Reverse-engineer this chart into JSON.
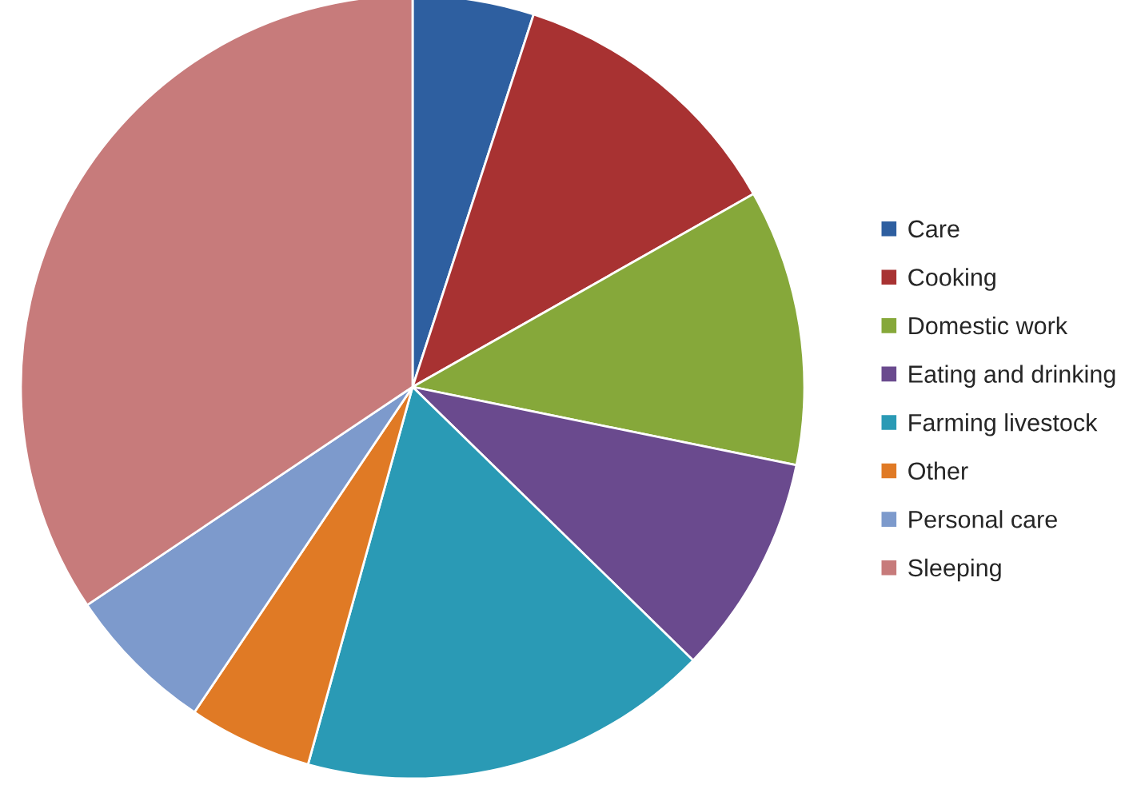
{
  "chart_data": {
    "type": "pie",
    "categories": [
      "Care",
      "Cooking",
      "Domestic work",
      "Eating and drinking",
      "Farming livestock",
      "Other",
      "Personal care",
      "Sleeping"
    ],
    "values": [
      5.0,
      11.8,
      11.4,
      9.1,
      17.0,
      5.1,
      6.2,
      34.4
    ],
    "colors": [
      "#2e5fa0",
      "#a83232",
      "#86a83a",
      "#6a4a8e",
      "#2a9ab5",
      "#e07a25",
      "#7d9acc",
      "#c77b7b"
    ],
    "legend": "right"
  }
}
